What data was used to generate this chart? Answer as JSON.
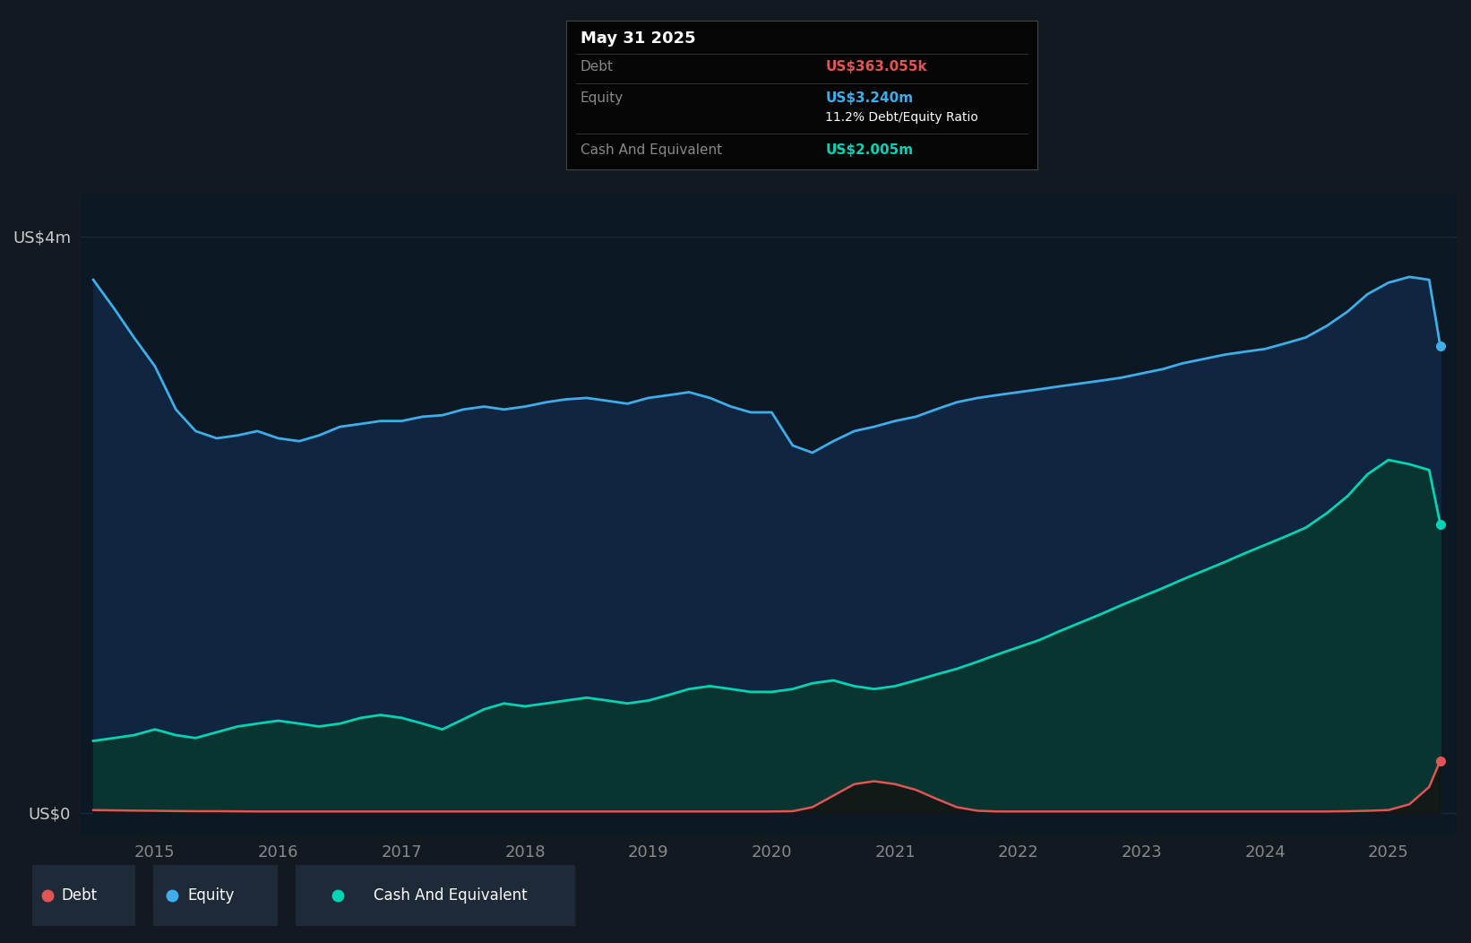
{
  "background_color": "#131921",
  "plot_bg_color": "#0d1825",
  "ylabel_top": "US$4m",
  "ylabel_bottom": "US$0",
  "ylim": [
    -0.15,
    4.3
  ],
  "equity_color": "#3daee9",
  "equity_fill": "#0f2540",
  "cash_color": "#00d4b4",
  "cash_fill": "#083530",
  "debt_color": "#e05555",
  "legend_bg": "#1e2a38",
  "tooltip_bg": "#050505",
  "tooltip_border": "#444444",
  "grid_color": "#1e2d3d",
  "axis_label_color": "#cccccc",
  "tick_color": "#888888",
  "years": [
    2014.5,
    2014.67,
    2014.83,
    2015.0,
    2015.17,
    2015.33,
    2015.5,
    2015.67,
    2015.83,
    2016.0,
    2016.17,
    2016.33,
    2016.5,
    2016.67,
    2016.83,
    2017.0,
    2017.17,
    2017.33,
    2017.5,
    2017.67,
    2017.83,
    2018.0,
    2018.17,
    2018.33,
    2018.5,
    2018.67,
    2018.83,
    2019.0,
    2019.17,
    2019.33,
    2019.5,
    2019.67,
    2019.83,
    2020.0,
    2020.17,
    2020.33,
    2020.5,
    2020.67,
    2020.83,
    2021.0,
    2021.17,
    2021.33,
    2021.5,
    2021.67,
    2021.83,
    2022.0,
    2022.17,
    2022.33,
    2022.5,
    2022.67,
    2022.83,
    2023.0,
    2023.17,
    2023.33,
    2023.5,
    2023.67,
    2023.83,
    2024.0,
    2024.17,
    2024.33,
    2024.5,
    2024.67,
    2024.83,
    2025.0,
    2025.17,
    2025.33,
    2025.42
  ],
  "equity": [
    3.7,
    3.5,
    3.3,
    3.1,
    2.8,
    2.65,
    2.6,
    2.62,
    2.65,
    2.6,
    2.58,
    2.62,
    2.68,
    2.7,
    2.72,
    2.72,
    2.75,
    2.76,
    2.8,
    2.82,
    2.8,
    2.82,
    2.85,
    2.87,
    2.88,
    2.86,
    2.84,
    2.88,
    2.9,
    2.92,
    2.88,
    2.82,
    2.78,
    2.78,
    2.55,
    2.5,
    2.58,
    2.65,
    2.68,
    2.72,
    2.75,
    2.8,
    2.85,
    2.88,
    2.9,
    2.92,
    2.94,
    2.96,
    2.98,
    3.0,
    3.02,
    3.05,
    3.08,
    3.12,
    3.15,
    3.18,
    3.2,
    3.22,
    3.26,
    3.3,
    3.38,
    3.48,
    3.6,
    3.68,
    3.72,
    3.7,
    3.24
  ],
  "cash": [
    0.5,
    0.52,
    0.54,
    0.58,
    0.54,
    0.52,
    0.56,
    0.6,
    0.62,
    0.64,
    0.62,
    0.6,
    0.62,
    0.66,
    0.68,
    0.66,
    0.62,
    0.58,
    0.65,
    0.72,
    0.76,
    0.74,
    0.76,
    0.78,
    0.8,
    0.78,
    0.76,
    0.78,
    0.82,
    0.86,
    0.88,
    0.86,
    0.84,
    0.84,
    0.86,
    0.9,
    0.92,
    0.88,
    0.86,
    0.88,
    0.92,
    0.96,
    1.0,
    1.05,
    1.1,
    1.15,
    1.2,
    1.26,
    1.32,
    1.38,
    1.44,
    1.5,
    1.56,
    1.62,
    1.68,
    1.74,
    1.8,
    1.86,
    1.92,
    1.98,
    2.08,
    2.2,
    2.35,
    2.45,
    2.42,
    2.38,
    2.005
  ],
  "debt": [
    0.02,
    0.018,
    0.016,
    0.015,
    0.013,
    0.012,
    0.012,
    0.011,
    0.01,
    0.01,
    0.01,
    0.01,
    0.01,
    0.01,
    0.01,
    0.01,
    0.01,
    0.01,
    0.01,
    0.01,
    0.01,
    0.01,
    0.01,
    0.01,
    0.01,
    0.01,
    0.01,
    0.01,
    0.01,
    0.01,
    0.01,
    0.01,
    0.01,
    0.01,
    0.012,
    0.04,
    0.12,
    0.2,
    0.22,
    0.2,
    0.16,
    0.1,
    0.04,
    0.015,
    0.01,
    0.01,
    0.01,
    0.01,
    0.01,
    0.01,
    0.01,
    0.01,
    0.01,
    0.01,
    0.01,
    0.01,
    0.01,
    0.01,
    0.01,
    0.01,
    0.01,
    0.012,
    0.015,
    0.02,
    0.06,
    0.18,
    0.363
  ],
  "xticks": [
    2015,
    2016,
    2017,
    2018,
    2019,
    2020,
    2021,
    2022,
    2023,
    2024,
    2025
  ],
  "tooltip_date": "May 31 2025",
  "tooltip_debt_label": "Debt",
  "tooltip_debt_value": "US$363.055k",
  "tooltip_equity_label": "Equity",
  "tooltip_equity_value": "US$3.240m",
  "tooltip_ratio": "11.2% Debt/Equity Ratio",
  "tooltip_cash_label": "Cash And Equivalent",
  "tooltip_cash_value": "US$2.005m",
  "legend_items": [
    "Debt",
    "Equity",
    "Cash And Equivalent"
  ],
  "legend_colors": [
    "#e05555",
    "#3daee9",
    "#00d4b4"
  ]
}
